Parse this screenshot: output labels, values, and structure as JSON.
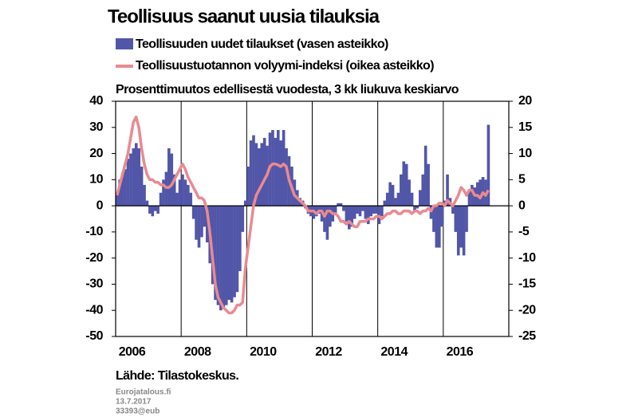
{
  "chart_data": {
    "type": "bar-line",
    "title": "Teollisuus saanut uusia tilauksia",
    "subtitle": "Prosenttimuutos edellisestä vuodesta, 3 kk liukuva keskiarvo",
    "source": "Lähde: Tilastokeskus.",
    "footer": [
      "Eurojatalous.fi",
      "13.7.2017",
      "33393@eub"
    ],
    "categories": [
      null,
      null,
      null,
      null,
      null,
      null,
      "2006",
      null,
      null,
      null,
      null,
      null,
      null,
      null,
      null,
      null,
      null,
      null,
      null,
      null,
      null,
      null,
      null,
      null,
      null,
      null,
      null,
      null,
      null,
      null,
      "2008",
      null,
      null,
      null,
      null,
      null,
      null,
      null,
      null,
      null,
      null,
      null,
      null,
      null,
      null,
      null,
      null,
      null,
      null,
      null,
      null,
      null,
      null,
      null,
      "2010",
      null,
      null,
      null,
      null,
      null,
      null,
      null,
      null,
      null,
      null,
      null,
      null,
      null,
      null,
      null,
      null,
      null,
      null,
      null,
      null,
      null,
      null,
      null,
      "2012",
      null,
      null,
      null,
      null,
      null,
      null,
      null,
      null,
      null,
      null,
      null,
      null,
      null,
      null,
      null,
      null,
      null,
      null,
      null,
      null,
      null,
      null,
      null,
      "2014",
      null,
      null,
      null,
      null,
      null,
      null,
      null,
      null,
      null,
      null,
      null,
      null,
      null,
      null,
      null,
      null,
      null,
      null,
      null,
      null,
      null,
      null,
      null,
      "2016",
      null,
      null,
      null,
      null,
      null,
      null,
      null,
      null,
      null,
      null,
      null,
      null,
      null,
      null,
      null,
      null,
      null
    ],
    "series": [
      {
        "name": "Teollisuuden uudet tilaukset (vasen asteikko)",
        "color": "#5256a8",
        "type": "bar",
        "values": [
          5,
          10,
          12,
          14,
          18,
          20,
          22,
          24,
          22,
          15,
          8,
          2,
          -3,
          -4,
          -2,
          -3,
          5,
          10,
          13,
          22,
          20,
          12,
          5,
          10,
          12,
          10,
          8,
          5,
          -5,
          -13,
          -16,
          -12,
          -8,
          -14,
          -22,
          -30,
          -36,
          -38,
          -40,
          -39,
          -38,
          -36,
          -37,
          -35,
          -33,
          -25,
          -10,
          2,
          15,
          25,
          27,
          24,
          22,
          24,
          26,
          23,
          28,
          29,
          26,
          29,
          25,
          29,
          22,
          19,
          15,
          10,
          6,
          3,
          2,
          -1,
          -3,
          -4,
          -5,
          -4,
          -3,
          -6,
          -10,
          -13,
          -8,
          -6,
          -3,
          1,
          1,
          -2,
          -6,
          -9,
          -8,
          -5,
          -3,
          -4,
          -2,
          -5,
          -7,
          -4,
          -3,
          -3,
          -7,
          -4,
          2,
          5,
          9,
          8,
          3,
          5,
          12,
          17,
          16,
          10,
          5,
          -2,
          -1,
          6,
          12,
          23,
          16,
          -5,
          -10,
          -16,
          -16,
          -8,
          2,
          12,
          3,
          -3,
          -10,
          -19,
          -16,
          -19,
          -10,
          6,
          8,
          7,
          9,
          10,
          11,
          10,
          31,
          null,
          null,
          null,
          null,
          null,
          null,
          null
        ]
      },
      {
        "name": "Teollisuustuotannon volyymi-indeksi (oikea asteikko)",
        "color": "#e98a90",
        "type": "line",
        "axis": "y2",
        "values": [
          2,
          4,
          6,
          8,
          10,
          13,
          16,
          17,
          15,
          11,
          8,
          6,
          5,
          5,
          4.5,
          4.5,
          4,
          4,
          3.5,
          3.5,
          4,
          5,
          6,
          7,
          8,
          7,
          5.5,
          4.5,
          3.5,
          2.5,
          1.5,
          1.5,
          1,
          -1,
          -5,
          -10,
          -15,
          -17.5,
          -18.5,
          -19.5,
          -20,
          -20.5,
          -20.5,
          -20,
          -19,
          -19,
          -18.5,
          -12,
          -8,
          -4,
          0,
          2,
          3,
          4,
          5,
          6,
          7.5,
          8,
          8,
          7.8,
          7.5,
          8,
          7.5,
          5,
          3.5,
          2,
          1.5,
          1,
          0.5,
          0,
          -1,
          -1,
          -1,
          -1.5,
          -1,
          -1,
          -2,
          -1,
          -1,
          -1.5,
          -1.5,
          -2,
          -3,
          -3,
          -3.5,
          -3,
          -3.5,
          -4,
          -4,
          -3,
          -3,
          -3,
          -2.5,
          -2.5,
          -2.5,
          -2,
          -2,
          -2.5,
          -2,
          -1.5,
          -1.5,
          -1,
          -1,
          -1.5,
          -1.5,
          -1,
          -1,
          -1,
          -1.5,
          -1,
          -1,
          -1.5,
          -1,
          -1,
          -0.5,
          -1,
          0,
          0,
          0.5,
          0.5,
          0,
          1,
          0.5,
          0,
          1,
          2,
          3.5,
          3,
          2,
          3,
          3,
          2,
          2,
          1.5,
          2.5,
          2,
          3,
          null,
          null,
          null,
          null,
          null,
          null,
          null
        ]
      }
    ],
    "ylim": [
      -50,
      40
    ],
    "yticks": [
      40,
      30,
      20,
      10,
      0,
      -10,
      -20,
      -30,
      -40,
      -50
    ],
    "y2lim": [
      -25,
      20
    ],
    "y2ticks": [
      20,
      15,
      10,
      5,
      0,
      -5,
      -10,
      -15,
      -20,
      -25
    ]
  }
}
